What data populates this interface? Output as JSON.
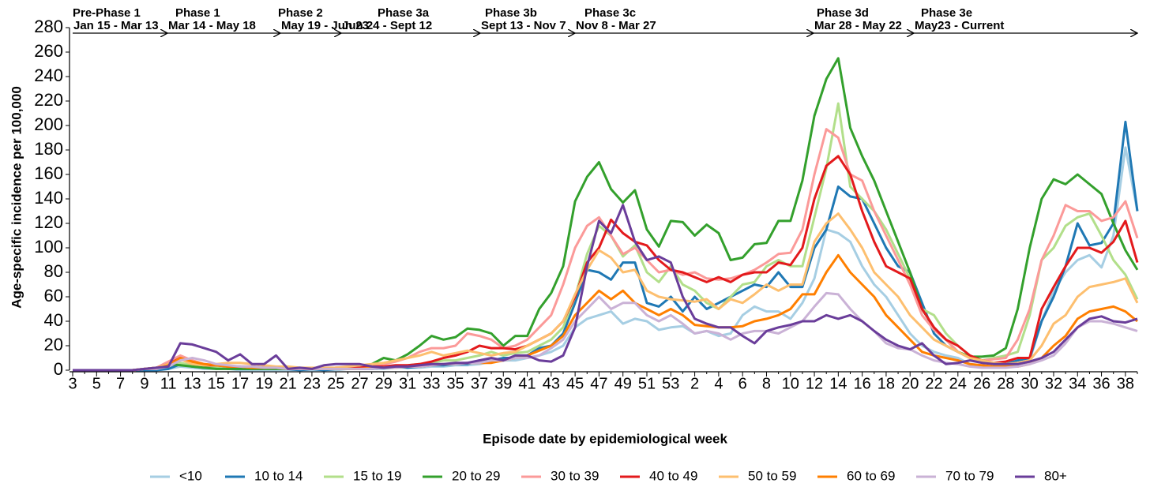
{
  "chart_data": {
    "type": "line",
    "x_label": "Episode date by epidemiological week",
    "y_label": "Age-specific incidence per 100,000",
    "ylim": [
      0,
      280
    ],
    "yticks": [
      0,
      20,
      40,
      60,
      80,
      100,
      120,
      140,
      160,
      180,
      200,
      220,
      240,
      260,
      280
    ],
    "categories": [
      "3",
      null,
      "5",
      null,
      "7",
      null,
      "9",
      null,
      "11",
      null,
      "13",
      null,
      "15",
      null,
      "17",
      null,
      "19",
      null,
      "21",
      null,
      "23",
      null,
      "25",
      null,
      "27",
      null,
      "29",
      null,
      "31",
      null,
      "33",
      null,
      "35",
      null,
      "37",
      null,
      "39",
      null,
      "41",
      null,
      "43",
      null,
      "45",
      null,
      "47",
      null,
      "49",
      null,
      "51",
      null,
      "53",
      null,
      "2",
      null,
      "4",
      null,
      "6",
      null,
      "8",
      null,
      "10",
      null,
      "12",
      null,
      "14",
      null,
      "16",
      null,
      "18",
      null,
      "20",
      null,
      "22",
      null,
      "24",
      null,
      "26",
      null,
      "28",
      null,
      "30",
      null,
      "32",
      null,
      "34",
      null,
      "36",
      null,
      "38",
      null
    ],
    "annotations": [
      {
        "phase": "Pre-Phase 1",
        "dates": "Jan 15 - Mar 13"
      },
      {
        "phase": "Phase 1",
        "dates": "Mar 14 - May 18"
      },
      {
        "phase": "Phase 2",
        "dates": "May 19 - Jun 23"
      },
      {
        "phase": "Phase 3a",
        "dates": "Jun 24 - Sept 12"
      },
      {
        "phase": "Phase 3b",
        "dates": "Sept 13 - Nov 7"
      },
      {
        "phase": "Phase 3c",
        "dates": "Nov 8 - Mar 27"
      },
      {
        "phase": "Phase 3d",
        "dates": "Mar 28 - May 22"
      },
      {
        "phase": "Phase 3e",
        "dates": "May23 - Current"
      }
    ],
    "series": [
      {
        "name": "<10",
        "color": "#a6cee3",
        "values": [
          0,
          0,
          0,
          0,
          0,
          0,
          0,
          0,
          1,
          3,
          2,
          1,
          1,
          1,
          0,
          0,
          0,
          0,
          0,
          0,
          0,
          0,
          0,
          1,
          1,
          1,
          1,
          2,
          2,
          2,
          3,
          3,
          4,
          4,
          5,
          7,
          8,
          8,
          10,
          12,
          15,
          20,
          35,
          42,
          45,
          48,
          38,
          42,
          40,
          33,
          35,
          36,
          30,
          32,
          28,
          30,
          45,
          52,
          48,
          48,
          42,
          55,
          75,
          115,
          112,
          105,
          85,
          70,
          60,
          45,
          30,
          20,
          15,
          12,
          10,
          5,
          3,
          3,
          3,
          5,
          8,
          40,
          65,
          80,
          90,
          94,
          84,
          110,
          182,
          130
        ]
      },
      {
        "name": "10 to 14",
        "color": "#1f78b4",
        "values": [
          0,
          0,
          0,
          0,
          0,
          0,
          0,
          0,
          1,
          5,
          3,
          2,
          2,
          1,
          1,
          1,
          1,
          1,
          1,
          0,
          1,
          0,
          1,
          1,
          1,
          1,
          2,
          3,
          2,
          3,
          4,
          4,
          5,
          5,
          8,
          8,
          10,
          10,
          12,
          18,
          20,
          30,
          55,
          82,
          80,
          74,
          88,
          88,
          55,
          52,
          60,
          48,
          60,
          50,
          55,
          60,
          65,
          70,
          68,
          80,
          68,
          68,
          100,
          115,
          150,
          142,
          140,
          120,
          100,
          85,
          80,
          55,
          30,
          20,
          15,
          10,
          7,
          5,
          5,
          8,
          10,
          40,
          60,
          85,
          120,
          102,
          104,
          120,
          203,
          130
        ]
      },
      {
        "name": "15 to 19",
        "color": "#b2df8a",
        "values": [
          0,
          0,
          0,
          0,
          0,
          0,
          1,
          2,
          4,
          6,
          4,
          3,
          3,
          2,
          2,
          2,
          1,
          1,
          1,
          1,
          1,
          1,
          1,
          1,
          1,
          2,
          2,
          3,
          4,
          5,
          6,
          8,
          8,
          10,
          12,
          15,
          12,
          14,
          15,
          20,
          25,
          35,
          60,
          95,
          118,
          110,
          93,
          102,
          80,
          72,
          85,
          70,
          65,
          55,
          50,
          60,
          70,
          72,
          85,
          90,
          85,
          85,
          125,
          165,
          218,
          150,
          140,
          130,
          115,
          95,
          75,
          50,
          45,
          30,
          20,
          12,
          8,
          10,
          12,
          15,
          45,
          90,
          100,
          118,
          125,
          128,
          110,
          90,
          78,
          58
        ]
      },
      {
        "name": "20 to 29",
        "color": "#33a02c",
        "values": [
          0,
          0,
          0,
          0,
          0,
          0,
          1,
          2,
          5,
          4,
          3,
          2,
          1,
          1,
          1,
          1,
          1,
          1,
          1,
          1,
          1,
          1,
          1,
          1,
          2,
          5,
          10,
          8,
          13,
          20,
          28,
          25,
          27,
          34,
          33,
          30,
          20,
          28,
          28,
          50,
          63,
          85,
          138,
          158,
          170,
          148,
          137,
          147,
          115,
          101,
          122,
          121,
          110,
          119,
          112,
          90,
          92,
          103,
          104,
          122,
          122,
          155,
          208,
          238,
          255,
          198,
          175,
          155,
          130,
          105,
          80,
          50,
          35,
          25,
          15,
          11,
          11,
          12,
          18,
          50,
          100,
          140,
          156,
          152,
          160,
          152,
          144,
          120,
          98,
          82
        ]
      },
      {
        "name": "30 to 39",
        "color": "#fb9a99",
        "values": [
          0,
          0,
          0,
          0,
          0,
          0,
          1,
          2,
          7,
          12,
          8,
          5,
          4,
          3,
          3,
          2,
          2,
          2,
          1,
          1,
          1,
          1,
          2,
          2,
          2,
          3,
          5,
          7,
          10,
          15,
          18,
          18,
          20,
          30,
          28,
          25,
          18,
          20,
          25,
          35,
          45,
          70,
          100,
          118,
          125,
          110,
          95,
          100,
          90,
          80,
          82,
          78,
          80,
          75,
          74,
          75,
          78,
          82,
          88,
          95,
          96,
          115,
          160,
          197,
          190,
          160,
          155,
          130,
          110,
          90,
          70,
          45,
          33,
          25,
          15,
          10,
          8,
          9,
          10,
          25,
          50,
          90,
          110,
          135,
          130,
          130,
          122,
          125,
          138,
          108
        ]
      },
      {
        "name": "40 to 49",
        "color": "#e31a1c",
        "values": [
          0,
          0,
          0,
          0,
          0,
          0,
          1,
          2,
          5,
          10,
          6,
          4,
          4,
          3,
          3,
          3,
          2,
          2,
          2,
          1,
          1,
          1,
          2,
          2,
          2,
          3,
          3,
          4,
          4,
          5,
          7,
          10,
          12,
          15,
          20,
          18,
          18,
          17,
          20,
          25,
          30,
          40,
          60,
          88,
          100,
          123,
          112,
          105,
          102,
          90,
          82,
          80,
          76,
          72,
          76,
          72,
          78,
          80,
          80,
          88,
          86,
          100,
          140,
          167,
          175,
          160,
          130,
          105,
          85,
          80,
          75,
          50,
          35,
          25,
          20,
          12,
          8,
          6,
          7,
          10,
          10,
          50,
          68,
          85,
          100,
          100,
          96,
          105,
          122,
          88
        ]
      },
      {
        "name": "50 to 59",
        "color": "#fdbf6f",
        "values": [
          0,
          0,
          0,
          0,
          0,
          0,
          1,
          2,
          5,
          9,
          5,
          4,
          5,
          6,
          6,
          5,
          4,
          3,
          3,
          2,
          2,
          2,
          2,
          3,
          4,
          5,
          6,
          8,
          10,
          12,
          15,
          12,
          14,
          16,
          14,
          12,
          14,
          15,
          20,
          25,
          30,
          40,
          62,
          82,
          98,
          92,
          80,
          82,
          65,
          60,
          58,
          57,
          56,
          58,
          50,
          58,
          55,
          62,
          70,
          65,
          70,
          70,
          105,
          120,
          128,
          115,
          100,
          80,
          70,
          60,
          45,
          35,
          25,
          20,
          15,
          10,
          8,
          6,
          5,
          6,
          8,
          20,
          38,
          45,
          60,
          68,
          70,
          72,
          75,
          55
        ]
      },
      {
        "name": "60 to 69",
        "color": "#ff7f00",
        "values": [
          0,
          0,
          0,
          0,
          0,
          0,
          1,
          1,
          4,
          10,
          7,
          5,
          4,
          3,
          3,
          2,
          2,
          2,
          1,
          1,
          1,
          1,
          1,
          1,
          1,
          2,
          2,
          2,
          3,
          3,
          4,
          5,
          5,
          6,
          6,
          6,
          8,
          10,
          12,
          16,
          20,
          28,
          45,
          55,
          65,
          58,
          65,
          55,
          50,
          45,
          50,
          45,
          37,
          36,
          35,
          35,
          36,
          40,
          42,
          45,
          50,
          62,
          62,
          80,
          94,
          80,
          70,
          60,
          45,
          35,
          25,
          15,
          12,
          10,
          8,
          5,
          4,
          3,
          3,
          3,
          5,
          10,
          20,
          28,
          42,
          48,
          50,
          52,
          48,
          40
        ]
      },
      {
        "name": "70 to 79",
        "color": "#cab2d6",
        "values": [
          0,
          0,
          0,
          0,
          0,
          0,
          1,
          1,
          3,
          8,
          10,
          8,
          5,
          4,
          3,
          3,
          2,
          2,
          1,
          1,
          1,
          1,
          1,
          1,
          1,
          1,
          2,
          2,
          3,
          3,
          4,
          5,
          5,
          6,
          6,
          8,
          8,
          10,
          10,
          12,
          18,
          25,
          40,
          50,
          60,
          50,
          55,
          55,
          45,
          40,
          45,
          38,
          30,
          32,
          30,
          25,
          30,
          32,
          32,
          30,
          35,
          40,
          52,
          63,
          62,
          50,
          40,
          32,
          22,
          18,
          17,
          12,
          8,
          6,
          5,
          3,
          2,
          2,
          2,
          3,
          5,
          8,
          12,
          22,
          35,
          40,
          40,
          38,
          35,
          32
        ]
      },
      {
        "name": "80+",
        "color": "#6a3d9a",
        "values": [
          0,
          0,
          0,
          0,
          0,
          0,
          1,
          2,
          3,
          22,
          21,
          18,
          15,
          8,
          13,
          5,
          5,
          12,
          1,
          2,
          1,
          4,
          5,
          5,
          5,
          3,
          2,
          3,
          3,
          4,
          5,
          5,
          6,
          6,
          8,
          10,
          8,
          12,
          12,
          8,
          7,
          12,
          35,
          85,
          122,
          112,
          135,
          105,
          90,
          93,
          88,
          60,
          42,
          38,
          35,
          35,
          28,
          22,
          32,
          35,
          37,
          40,
          40,
          45,
          42,
          45,
          40,
          32,
          25,
          20,
          17,
          22,
          12,
          5,
          6,
          8,
          6,
          5,
          5,
          5,
          7,
          10,
          15,
          25,
          35,
          42,
          44,
          40,
          39,
          42
        ]
      }
    ]
  }
}
